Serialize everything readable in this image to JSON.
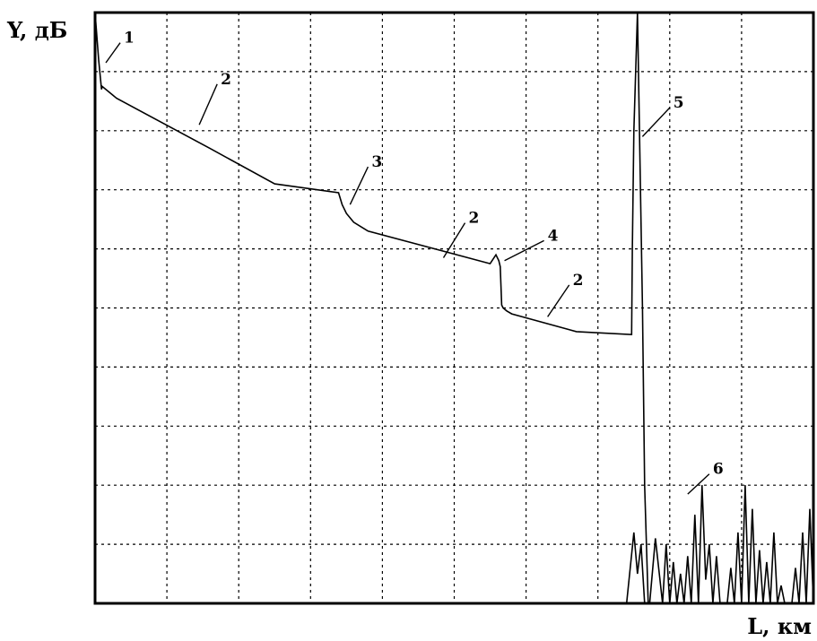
{
  "chart_data": {
    "type": "line",
    "xlabel": "L, км",
    "ylabel": "Y, дБ",
    "xlim": [
      0,
      10
    ],
    "ylim": [
      0,
      10
    ],
    "grid": true,
    "grid_style": "dotted",
    "series": [
      {
        "values_x": [
          0.0,
          0.05,
          0.09,
          0.1,
          0.3,
          1.6,
          2.5,
          3.39,
          3.44,
          3.5,
          3.6,
          3.8,
          5.5,
          5.58,
          5.62,
          5.64,
          5.66,
          5.68,
          5.73,
          5.8,
          6.7,
          7.47,
          7.48,
          7.5,
          7.55,
          7.62,
          7.65,
          7.7
        ],
        "values_y": [
          10.0,
          9.2,
          8.7,
          8.75,
          8.55,
          7.7,
          7.1,
          6.95,
          6.75,
          6.6,
          6.45,
          6.3,
          5.75,
          5.9,
          5.8,
          5.7,
          5.05,
          5.0,
          4.95,
          4.9,
          4.6,
          4.55,
          6.0,
          8.0,
          10.0,
          5.0,
          2.0,
          0.0
        ]
      },
      {
        "values_x": [
          7.4,
          7.5,
          7.55,
          7.6,
          7.65,
          7.72,
          7.8,
          7.9,
          7.95,
          8.0,
          8.05,
          8.1,
          8.15,
          8.2,
          8.25,
          8.3,
          8.35,
          8.4,
          8.45,
          8.5,
          8.55,
          8.6,
          8.65,
          8.7,
          8.75,
          8.8,
          8.85,
          8.9,
          8.95,
          9.0,
          9.05,
          9.1,
          9.15,
          9.2,
          9.25,
          9.3,
          9.35,
          9.4,
          9.45,
          9.5,
          9.55,
          9.6,
          9.65,
          9.7,
          9.75,
          9.8,
          9.85,
          9.9,
          9.95,
          10.0
        ],
        "values_y": [
          0.0,
          1.2,
          0.5,
          1.0,
          0.0,
          0.0,
          1.1,
          0.0,
          1.0,
          0.0,
          0.7,
          0.0,
          0.5,
          0.0,
          0.8,
          0.0,
          1.5,
          0.0,
          2.0,
          0.4,
          1.0,
          0.0,
          0.8,
          0.0,
          0.0,
          0.0,
          0.6,
          0.0,
          1.2,
          0.0,
          2.0,
          0.0,
          1.6,
          0.0,
          0.9,
          0.0,
          0.7,
          0.0,
          1.2,
          0.0,
          0.3,
          0.0,
          0.0,
          0.0,
          0.6,
          0.0,
          1.2,
          0.0,
          1.6,
          0.0
        ]
      }
    ],
    "markers": [
      {
        "label": "1",
        "x": 0.4,
        "y": 9.55,
        "target_x": 0.15,
        "target_y": 9.15
      },
      {
        "label": "2",
        "x": 1.75,
        "y": 8.85,
        "target_x": 1.45,
        "target_y": 8.1
      },
      {
        "label": "3",
        "x": 3.85,
        "y": 7.45,
        "target_x": 3.55,
        "target_y": 6.75
      },
      {
        "label": "2",
        "x": 5.2,
        "y": 6.5,
        "target_x": 4.85,
        "target_y": 5.85
      },
      {
        "label": "4",
        "x": 6.3,
        "y": 6.2,
        "target_x": 5.7,
        "target_y": 5.8
      },
      {
        "label": "2",
        "x": 6.65,
        "y": 5.45,
        "target_x": 6.3,
        "target_y": 4.85
      },
      {
        "label": "5",
        "x": 8.05,
        "y": 8.45,
        "target_x": 7.62,
        "target_y": 7.9
      },
      {
        "label": "6",
        "x": 8.6,
        "y": 2.25,
        "target_x": 8.25,
        "target_y": 1.85
      }
    ]
  }
}
